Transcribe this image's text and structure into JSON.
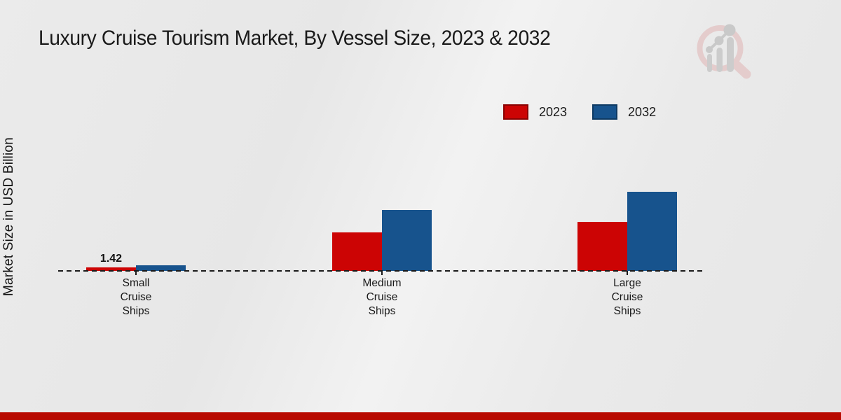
{
  "page": {
    "title": "Luxury Cruise Tourism Market, By Vessel Size, 2023 & 2032"
  },
  "y_axis": {
    "label": "Market Size in USD Billion"
  },
  "legend": {
    "items": [
      {
        "label": "2023",
        "color": "#cc0404"
      },
      {
        "label": "2032",
        "color": "#17538d"
      }
    ]
  },
  "chart_data": {
    "type": "bar",
    "title": "Luxury Cruise Tourism Market, By Vessel Size, 2023 & 2032",
    "xlabel": "",
    "ylabel": "Market Size in USD Billion",
    "categories": [
      "Small Cruise Ships",
      "Medium Cruise Ships",
      "Large Cruise Ships"
    ],
    "category_display_labels": [
      "Small\nCruise\nShips",
      "Medium\nCruise\nShips",
      "Large\nCruise\nShips"
    ],
    "series": [
      {
        "name": "2023",
        "color": "#cc0404",
        "values": [
          1.42,
          14.5,
          18.4
        ]
      },
      {
        "name": "2032",
        "color": "#17538d",
        "values": [
          2.1,
          22.9,
          29.7
        ]
      }
    ],
    "annotations": [
      {
        "series_index": 0,
        "category_index": 0,
        "text": "1.42"
      }
    ],
    "baseline_value": 0,
    "grid": false,
    "legend_position": "upper right",
    "axis_style": "dashed zero baseline only, no y-axis ticks"
  },
  "branding": {
    "logo_name": "market-research-growth-magnifier-logo"
  },
  "footer": {
    "accent_color": "#b80a01"
  },
  "colors": {
    "background": "#eaeaea",
    "series_2023": "#cc0404",
    "series_2032": "#17538d",
    "footer_bar": "#b80a01",
    "text": "#1a1a1a"
  }
}
